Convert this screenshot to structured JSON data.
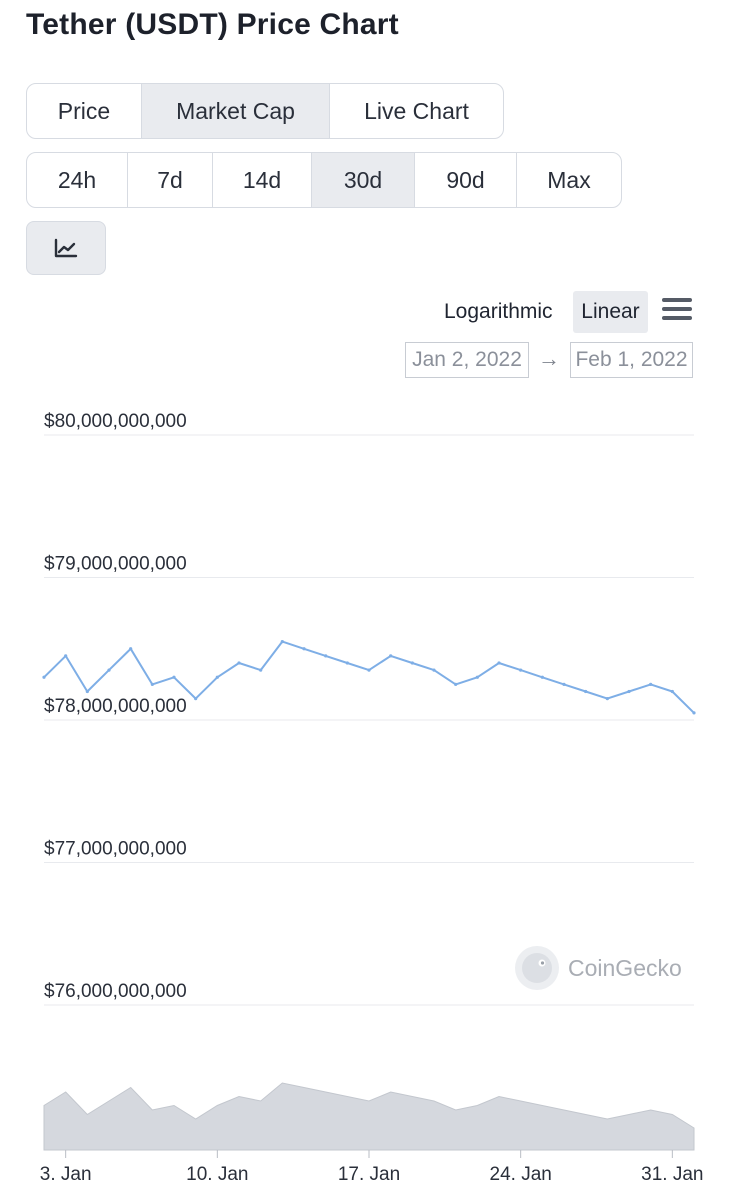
{
  "page": {
    "title": "Tether (USDT) Price Chart"
  },
  "tabs": [
    {
      "label": "Price",
      "active": false
    },
    {
      "label": "Market Cap",
      "active": true
    },
    {
      "label": "Live Chart",
      "active": false
    }
  ],
  "ranges": [
    {
      "label": "24h",
      "active": false
    },
    {
      "label": "7d",
      "active": false
    },
    {
      "label": "14d",
      "active": false
    },
    {
      "label": "30d",
      "active": true
    },
    {
      "label": "90d",
      "active": false
    },
    {
      "label": "Max",
      "active": false
    }
  ],
  "chart_type_icon": "line-chart-icon",
  "scale": {
    "log_label": "Logarithmic",
    "linear_label": "Linear",
    "selected": "Linear"
  },
  "menu_icon": "hamburger-menu-icon",
  "date_range": {
    "from": "Jan 2, 2022",
    "to": "Feb 1, 2022",
    "arrow": "→"
  },
  "watermark": {
    "text": "CoinGecko",
    "icon": "gecko-logo-icon"
  },
  "colors": {
    "line": "#7eaee6",
    "navigator": "#d5d8de",
    "grid": "#e8eaee",
    "active_bg": "#e9ebef"
  },
  "chart_data": {
    "type": "line",
    "metric": "Market Cap",
    "scale": "linear",
    "x_range": [
      "2022-01-02",
      "2022-02-01"
    ],
    "ylim": [
      76000000000,
      80000000000
    ],
    "y_ticks": [
      {
        "value": 80000000000,
        "label": "$80,000,000,000"
      },
      {
        "value": 79000000000,
        "label": "$79,000,000,000"
      },
      {
        "value": 78000000000,
        "label": "$78,000,000,000"
      },
      {
        "value": 77000000000,
        "label": "$77,000,000,000"
      },
      {
        "value": 76000000000,
        "label": "$76,000,000,000"
      }
    ],
    "x_ticks": [
      {
        "date": "2022-01-03",
        "label": "3. Jan"
      },
      {
        "date": "2022-01-10",
        "label": "10. Jan"
      },
      {
        "date": "2022-01-17",
        "label": "17. Jan"
      },
      {
        "date": "2022-01-24",
        "label": "24. Jan"
      },
      {
        "date": "2022-01-31",
        "label": "31. Jan"
      }
    ],
    "grid": true,
    "series": [
      {
        "x": [
          "2022-01-02",
          "2022-01-03",
          "2022-01-04",
          "2022-01-05",
          "2022-01-06",
          "2022-01-07",
          "2022-01-08",
          "2022-01-09",
          "2022-01-10",
          "2022-01-11",
          "2022-01-12",
          "2022-01-13",
          "2022-01-14",
          "2022-01-15",
          "2022-01-16",
          "2022-01-17",
          "2022-01-18",
          "2022-01-19",
          "2022-01-20",
          "2022-01-21",
          "2022-01-22",
          "2022-01-23",
          "2022-01-24",
          "2022-01-25",
          "2022-01-26",
          "2022-01-27",
          "2022-01-28",
          "2022-01-29",
          "2022-01-30",
          "2022-01-31",
          "2022-02-01"
        ],
        "values": [
          78300000000,
          78450000000,
          78200000000,
          78350000000,
          78500000000,
          78250000000,
          78300000000,
          78150000000,
          78300000000,
          78400000000,
          78350000000,
          78550000000,
          78500000000,
          78450000000,
          78400000000,
          78350000000,
          78450000000,
          78400000000,
          78350000000,
          78250000000,
          78300000000,
          78400000000,
          78350000000,
          78300000000,
          78250000000,
          78200000000,
          78150000000,
          78200000000,
          78250000000,
          78200000000,
          78050000000
        ]
      }
    ],
    "navigator": {
      "type": "area",
      "color": "#d5d8de"
    }
  }
}
